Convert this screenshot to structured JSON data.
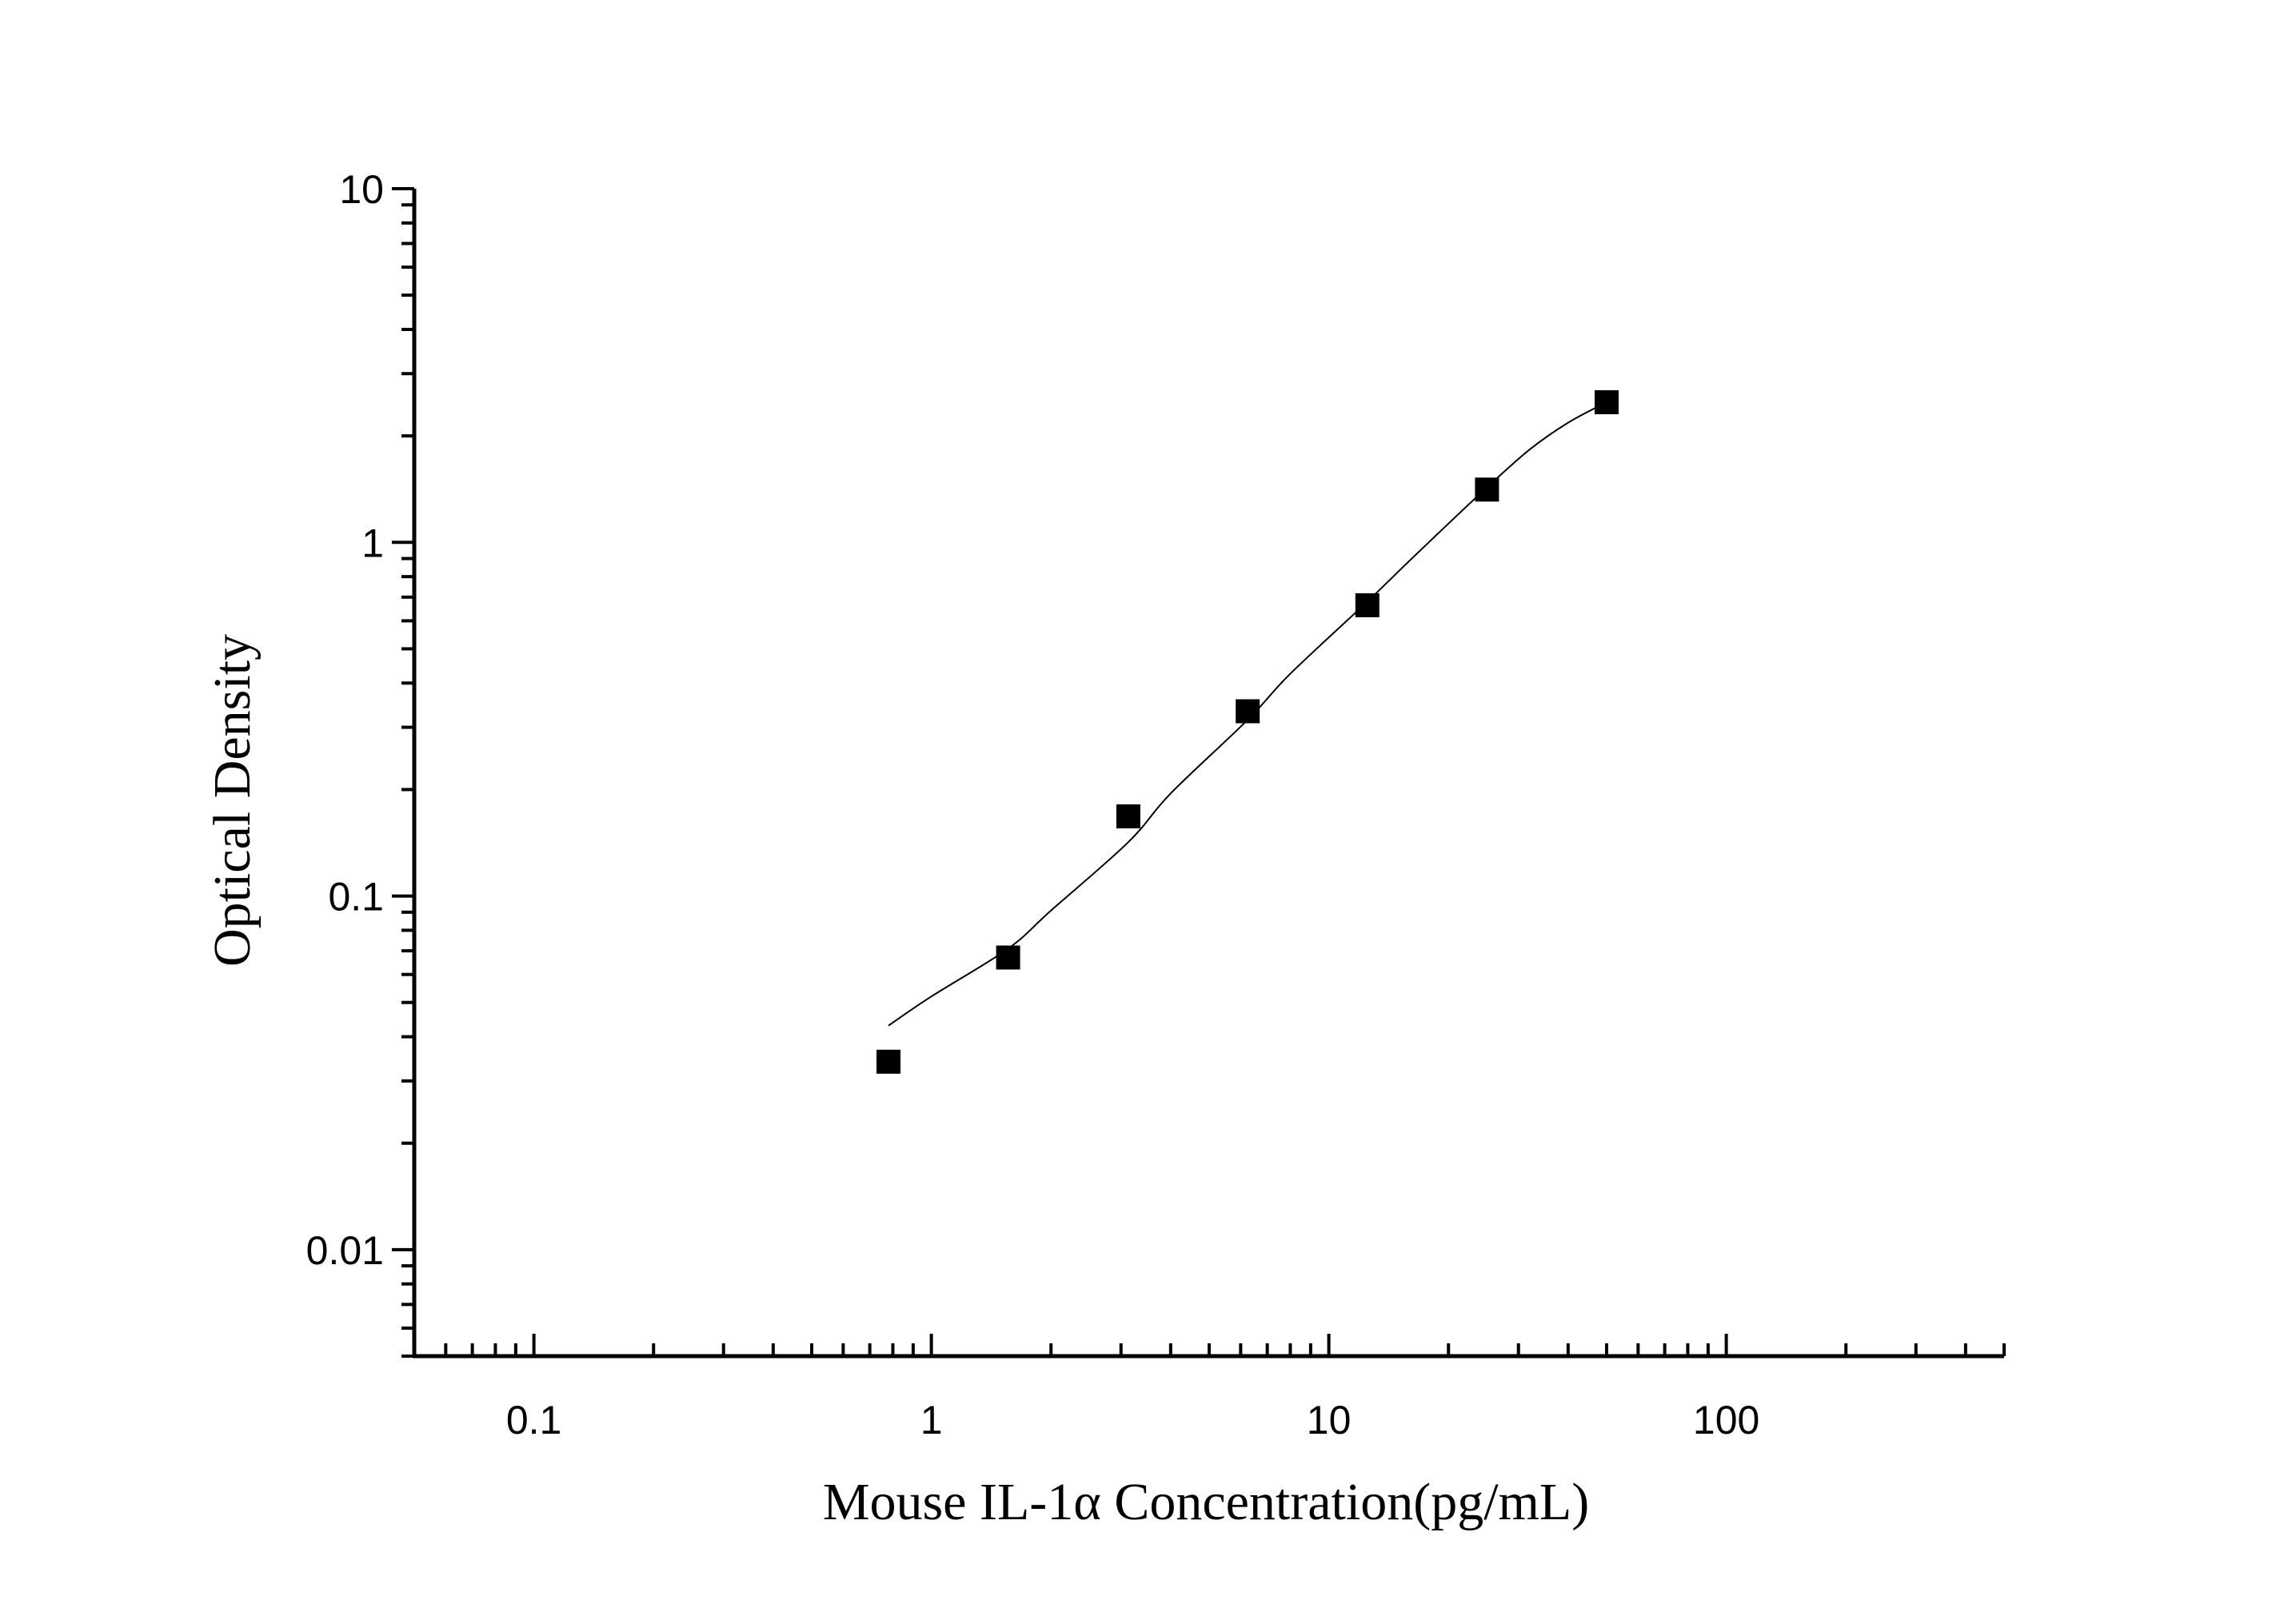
{
  "chart_data": {
    "type": "scatter",
    "xlabel": "Mouse IL-1α Concentration(pg/mL)",
    "ylabel": "Optical Density",
    "x_scale": "log",
    "y_scale": "log",
    "xlim": [
      0.05,
      500
    ],
    "ylim": [
      0.005,
      10
    ],
    "x_ticks": [
      {
        "value": 0.1,
        "label": "0.1"
      },
      {
        "value": 1,
        "label": "1"
      },
      {
        "value": 10,
        "label": "10"
      },
      {
        "value": 100,
        "label": "100"
      }
    ],
    "y_ticks": [
      {
        "value": 0.01,
        "label": "0.01"
      },
      {
        "value": 0.1,
        "label": "0.1"
      },
      {
        "value": 1,
        "label": "1"
      },
      {
        "value": 10,
        "label": "10"
      }
    ],
    "grid": false,
    "series": [
      {
        "kind": "points",
        "marker": "square",
        "color": "#000000",
        "x": [
          0.78,
          1.56,
          3.13,
          6.25,
          12.5,
          25,
          50
        ],
        "y": [
          0.034,
          0.067,
          0.168,
          0.333,
          0.664,
          1.41,
          2.49
        ]
      },
      {
        "kind": "fit-curve",
        "color": "#000000",
        "x": [
          0.78,
          1.0,
          1.56,
          2.0,
          3.13,
          4.0,
          6.25,
          8.0,
          12.5,
          16.0,
          20.0,
          25.0,
          32.0,
          40.0,
          50.0
        ],
        "y": [
          0.043,
          0.052,
          0.071,
          0.091,
          0.142,
          0.195,
          0.315,
          0.425,
          0.68,
          0.89,
          1.13,
          1.43,
          1.83,
          2.18,
          2.49
        ]
      }
    ]
  }
}
